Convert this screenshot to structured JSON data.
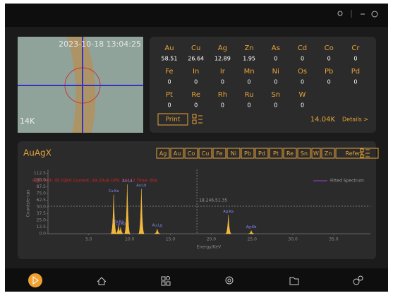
{
  "camera": {
    "timestamp": "2023-10-18 13:04:25",
    "zoom": "14K"
  },
  "results": {
    "elements": [
      {
        "symbol": "Au",
        "value": 58.51
      },
      {
        "symbol": "Cu",
        "value": 26.64
      },
      {
        "symbol": "Ag",
        "value": 12.89
      },
      {
        "symbol": "Zn",
        "value": 1.95
      },
      {
        "symbol": "As",
        "value": 0
      },
      {
        "symbol": "Cd",
        "value": 0
      },
      {
        "symbol": "Co",
        "value": 0
      },
      {
        "symbol": "Cr",
        "value": 0
      },
      {
        "symbol": "Fe",
        "value": 0
      },
      {
        "symbol": "In",
        "value": 0
      },
      {
        "symbol": "Ir",
        "value": 0
      },
      {
        "symbol": "Mn",
        "value": 0
      },
      {
        "symbol": "Ni",
        "value": 0
      },
      {
        "symbol": "Os",
        "value": 0
      },
      {
        "symbol": "Pb",
        "value": 0
      },
      {
        "symbol": "Pd",
        "value": 0
      },
      {
        "symbol": "Pt",
        "value": 0
      },
      {
        "symbol": "Re",
        "value": 0
      },
      {
        "symbol": "Rh",
        "value": 0
      },
      {
        "symbol": "Ru",
        "value": 0
      },
      {
        "symbol": "Sn",
        "value": 0
      },
      {
        "symbol": "W",
        "value": 0
      }
    ],
    "print": "Print",
    "count": "14.04K",
    "details": "Details >"
  },
  "spectrum": {
    "title": "AuAgX",
    "filters": [
      "Ag",
      "Au",
      "Co",
      "Cu",
      "Fe",
      "Ni",
      "Pb",
      "Pd",
      "Pt",
      "Re",
      "Sn",
      "W",
      "Zn",
      "Refers..."
    ],
    "info": "High Volt: 45.02kV  Current: 29.20uA  CPS: 30142  Time: 60s",
    "legend": "Fitted Spectrum",
    "cursor": "18.246,51.35",
    "cursor_x": 18.246,
    "cursor_y": 51.35,
    "ylabel": "Counts/e-cps",
    "xlabel": "Energy/KeV",
    "xlim": [
      0,
      39.5
    ],
    "ylim": [
      0,
      120
    ],
    "xticks": [
      {
        "value": 5,
        "label": "5.0"
      },
      {
        "value": 10,
        "label": "10.0"
      },
      {
        "value": 15,
        "label": "15.0"
      },
      {
        "value": 20,
        "label": "20.0"
      },
      {
        "value": 25,
        "label": "25.0"
      },
      {
        "value": 30,
        "label": "30.0"
      },
      {
        "value": 35,
        "label": "35.0"
      }
    ],
    "yticks": [
      {
        "value": 0,
        "label": "0.0"
      },
      12.5,
      {
        "value": 25,
        "label": "25.0"
      },
      37.5,
      {
        "value": 50,
        "label": "50.0"
      },
      62.5,
      {
        "value": 75,
        "label": "75.0"
      },
      87.5,
      {
        "value": 100,
        "label": "100.0"
      },
      112.5
    ],
    "peaks": [
      {
        "label": "Cu:Ka",
        "energy": 8.05,
        "height": 73
      },
      {
        "label": "Zn:Ka",
        "energy": 8.64,
        "height": 16
      },
      {
        "label": "Cu:Kb",
        "energy": 8.9,
        "height": 12
      },
      {
        "label": "Au:La",
        "energy": 9.71,
        "height": 92
      },
      {
        "label": "Au:Lb",
        "energy": 11.44,
        "height": 84
      },
      {
        "label": "Au:Lg",
        "energy": 13.38,
        "height": 9
      },
      {
        "label": "Ag:Ka",
        "energy": 22.1,
        "height": 35
      },
      {
        "label": "Ag:Kb",
        "energy": 24.9,
        "height": 6
      }
    ]
  }
}
